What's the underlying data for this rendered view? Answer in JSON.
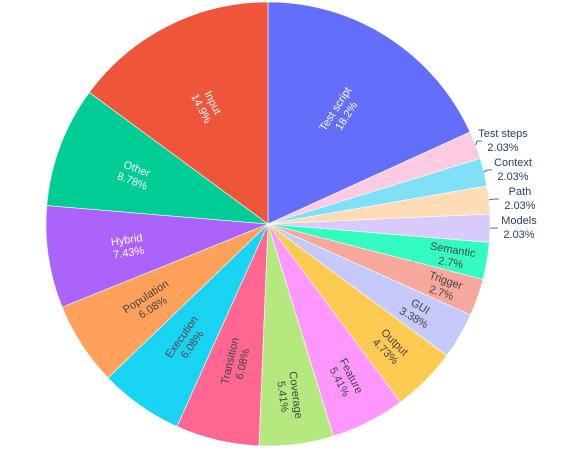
{
  "chart_data": {
    "type": "pie",
    "title": "",
    "direction": "clockwise",
    "start": "12 o'clock",
    "slices": [
      {
        "label": "Test script",
        "value": 18.2,
        "text": "18.2%",
        "color": "#636efa",
        "label_pos": "inside"
      },
      {
        "label": "Test steps",
        "value": 2.03,
        "text": "2.03%",
        "color": "#ffcbe3",
        "label_pos": "outside"
      },
      {
        "label": "Context",
        "value": 2.03,
        "text": "2.03%",
        "color": "#7fe0f8",
        "label_pos": "outside"
      },
      {
        "label": "Path",
        "value": 2.03,
        "text": "2.03%",
        "color": "#ffdcb8",
        "label_pos": "outside"
      },
      {
        "label": "Models",
        "value": 2.03,
        "text": "2.03%",
        "color": "#d8cbfb",
        "label_pos": "outside"
      },
      {
        "label": "Semantic",
        "value": 2.7,
        "text": "2.7%",
        "color": "#32fcc0",
        "label_pos": "inside"
      },
      {
        "label": "Trigger",
        "value": 2.7,
        "text": "2.7%",
        "color": "#f6a89c",
        "label_pos": "inside"
      },
      {
        "label": "GUI",
        "value": 3.38,
        "text": "3.38%",
        "color": "#c5c9fb",
        "label_pos": "inside"
      },
      {
        "label": "Output",
        "value": 4.73,
        "text": "4.73%",
        "color": "#fecb52",
        "label_pos": "inside"
      },
      {
        "label": "Feature",
        "value": 5.41,
        "text": "5.41%",
        "color": "#ff97ff",
        "label_pos": "inside"
      },
      {
        "label": "Coverage",
        "value": 5.41,
        "text": "5.41%",
        "color": "#b6e880",
        "label_pos": "inside"
      },
      {
        "label": "Transition",
        "value": 6.08,
        "text": "6.08%",
        "color": "#ff6692",
        "label_pos": "inside"
      },
      {
        "label": "Execution",
        "value": 6.08,
        "text": "6.08%",
        "color": "#19d3f3",
        "label_pos": "inside"
      },
      {
        "label": "Population",
        "value": 6.08,
        "text": "6.08%",
        "color": "#ffa15a",
        "label_pos": "inside"
      },
      {
        "label": "Hybrid",
        "value": 7.43,
        "text": "7.43%",
        "color": "#ab63fa",
        "label_pos": "inside"
      },
      {
        "label": "Other",
        "value": 8.78,
        "text": "8.78%",
        "color": "#00cc96",
        "label_pos": "inside"
      },
      {
        "label": "Input",
        "value": 14.9,
        "text": "14.9%",
        "color": "#ef553b",
        "label_pos": "inside"
      }
    ]
  }
}
